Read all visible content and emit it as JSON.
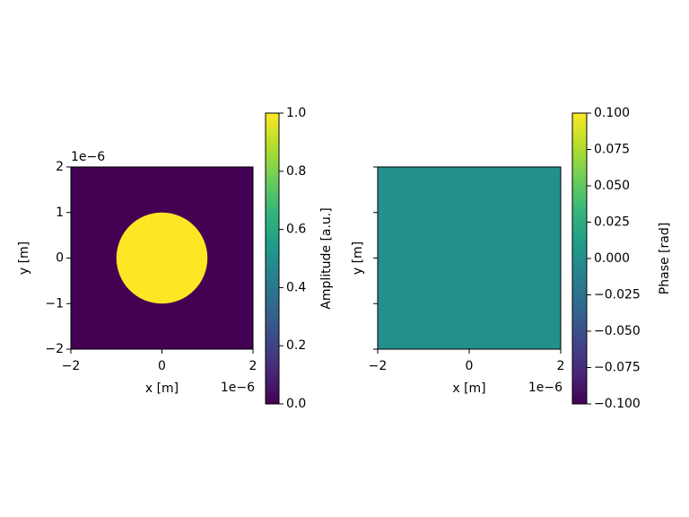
{
  "chart_data": [
    {
      "type": "image",
      "x_label": "x [m]",
      "y_label": "y [m]",
      "x_offset": "1e−6",
      "y_offset": "1e−6",
      "xlim": [
        -2,
        2
      ],
      "ylim": [
        -2,
        2
      ],
      "xticks": [
        {
          "value": -2,
          "label": "−2"
        },
        0,
        2
      ],
      "yticks": [
        {
          "value": -2,
          "label": "−2"
        },
        {
          "value": -1,
          "label": "−1"
        },
        0,
        1,
        2
      ],
      "show_ytick_labels": true,
      "background_value": 0,
      "regions": [
        {
          "shape": "circle",
          "center": [
            0,
            0
          ],
          "radius": 1,
          "value": 1
        }
      ],
      "colormap": [
        "#440154",
        "#482878",
        "#3e4989",
        "#31688e",
        "#26828e",
        "#1f9e89",
        "#35b779",
        "#6ece58",
        "#b5de2b",
        "#fde725"
      ],
      "colorbar_label": "Amplitude [a.u.]",
      "clim": [
        0,
        1
      ],
      "cticks": [
        {
          "value": 0,
          "label": "0.0"
        },
        0.2,
        0.4,
        0.6,
        0.8,
        {
          "value": 1,
          "label": "1.0"
        }
      ]
    },
    {
      "type": "image",
      "x_label": "x [m]",
      "y_label": "y [m]",
      "x_offset": "1e−6",
      "xlim": [
        -2,
        2
      ],
      "ylim": [
        -2,
        2
      ],
      "xticks": [
        {
          "value": -2,
          "label": "−2"
        },
        0,
        2
      ],
      "yticks": [
        -2,
        -1,
        0,
        1,
        2
      ],
      "show_ytick_labels": false,
      "background_value": 0,
      "regions": [],
      "colormap": [
        "#440154",
        "#482878",
        "#3e4989",
        "#31688e",
        "#26828e",
        "#1f9e89",
        "#35b779",
        "#6ece58",
        "#b5de2b",
        "#fde725"
      ],
      "colorbar_label": "Phase [rad]",
      "clim": [
        -0.1,
        0.1
      ],
      "cticks": [
        {
          "value": -0.1,
          "label": "−0.100"
        },
        {
          "value": -0.075,
          "label": "−0.075"
        },
        {
          "value": -0.05,
          "label": "−0.050"
        },
        {
          "value": -0.025,
          "label": "−0.025"
        },
        {
          "value": 0,
          "label": "0.000"
        },
        {
          "value": 0.025,
          "label": "0.025"
        },
        {
          "value": 0.05,
          "label": "0.050"
        },
        {
          "value": 0.075,
          "label": "0.075"
        },
        {
          "value": 0.1,
          "label": "0.100"
        }
      ]
    }
  ]
}
